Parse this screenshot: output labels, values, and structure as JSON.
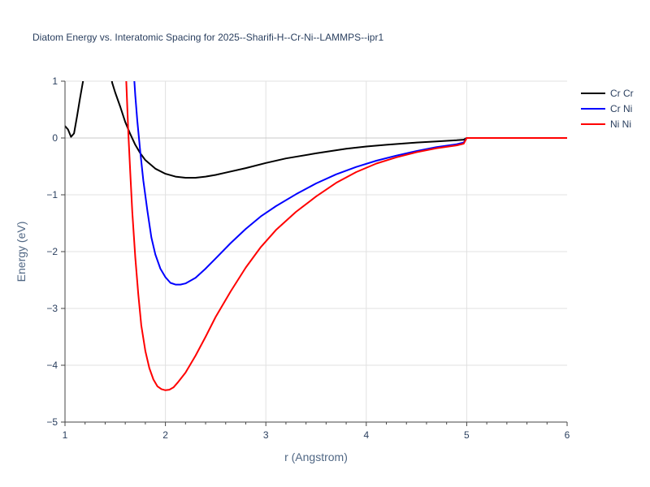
{
  "chart_data": {
    "type": "line",
    "title": "Diatom Energy vs. Interatomic Spacing for 2025--Sharifi-H--Cr-Ni--LAMMPS--ipr1",
    "xlabel": "r (Angstrom)",
    "ylabel": "Energy (eV)",
    "xlim": [
      1,
      6
    ],
    "ylim": [
      -5,
      1
    ],
    "x_ticks": [
      1,
      2,
      3,
      4,
      5,
      6
    ],
    "x_tick_labels": [
      "1",
      "2",
      "3",
      "4",
      "5",
      "6"
    ],
    "y_ticks": [
      -5,
      -4,
      -3,
      -2,
      -1,
      0,
      1
    ],
    "y_tick_labels": [
      "−5",
      "−4",
      "−3",
      "−2",
      "−1",
      "0",
      "1"
    ],
    "grid": true,
    "legend_position": "top-right",
    "series": [
      {
        "name": "Cr Cr",
        "color": "#000000",
        "x": [
          1.0,
          1.03,
          1.06,
          1.09,
          1.12,
          1.15,
          1.18,
          1.2,
          1.44,
          1.47,
          1.5,
          1.55,
          1.6,
          1.65,
          1.7,
          1.75,
          1.8,
          1.9,
          2.0,
          2.1,
          2.2,
          2.3,
          2.4,
          2.5,
          2.6,
          2.8,
          3.0,
          3.2,
          3.5,
          3.8,
          4.0,
          4.2,
          4.5,
          4.7,
          4.9,
          4.97,
          5.0,
          6.0
        ],
        "y": [
          0.21,
          0.15,
          0.02,
          0.08,
          0.38,
          0.7,
          1.0,
          1.3,
          1.3,
          0.97,
          0.8,
          0.55,
          0.28,
          0.07,
          -0.12,
          -0.27,
          -0.39,
          -0.54,
          -0.63,
          -0.68,
          -0.7,
          -0.7,
          -0.68,
          -0.65,
          -0.61,
          -0.53,
          -0.44,
          -0.36,
          -0.27,
          -0.19,
          -0.15,
          -0.12,
          -0.08,
          -0.06,
          -0.04,
          -0.03,
          0.0,
          0.0
        ]
      },
      {
        "name": "Cr Ni",
        "color": "#0000ff",
        "x": [
          1.68,
          1.7,
          1.72,
          1.75,
          1.78,
          1.82,
          1.86,
          1.9,
          1.95,
          2.0,
          2.05,
          2.1,
          2.15,
          2.2,
          2.3,
          2.4,
          2.5,
          2.65,
          2.8,
          2.95,
          3.1,
          3.3,
          3.5,
          3.7,
          3.9,
          4.1,
          4.3,
          4.5,
          4.7,
          4.9,
          4.97,
          5.0,
          6.0
        ],
        "y": [
          1.3,
          0.75,
          0.3,
          -0.25,
          -0.75,
          -1.28,
          -1.75,
          -2.05,
          -2.3,
          -2.45,
          -2.55,
          -2.58,
          -2.58,
          -2.56,
          -2.46,
          -2.3,
          -2.12,
          -1.85,
          -1.6,
          -1.38,
          -1.2,
          -0.99,
          -0.8,
          -0.64,
          -0.51,
          -0.4,
          -0.31,
          -0.23,
          -0.16,
          -0.11,
          -0.08,
          0.0,
          0.0
        ]
      },
      {
        "name": "Ni Ni",
        "color": "#ff0000",
        "x": [
          1.61,
          1.63,
          1.65,
          1.67,
          1.7,
          1.73,
          1.76,
          1.8,
          1.84,
          1.88,
          1.92,
          1.96,
          2.0,
          2.04,
          2.08,
          2.12,
          2.2,
          2.3,
          2.4,
          2.5,
          2.65,
          2.8,
          2.95,
          3.1,
          3.3,
          3.5,
          3.7,
          3.9,
          4.1,
          4.3,
          4.5,
          4.7,
          4.9,
          4.97,
          5.0,
          6.0
        ],
        "y": [
          1.0,
          0.1,
          -0.6,
          -1.3,
          -2.1,
          -2.75,
          -3.3,
          -3.75,
          -4.05,
          -4.25,
          -4.37,
          -4.42,
          -4.44,
          -4.43,
          -4.39,
          -4.31,
          -4.13,
          -3.83,
          -3.5,
          -3.15,
          -2.7,
          -2.28,
          -1.92,
          -1.62,
          -1.3,
          -1.03,
          -0.79,
          -0.6,
          -0.45,
          -0.34,
          -0.25,
          -0.18,
          -0.13,
          -0.1,
          0.0,
          0.0
        ]
      }
    ]
  }
}
